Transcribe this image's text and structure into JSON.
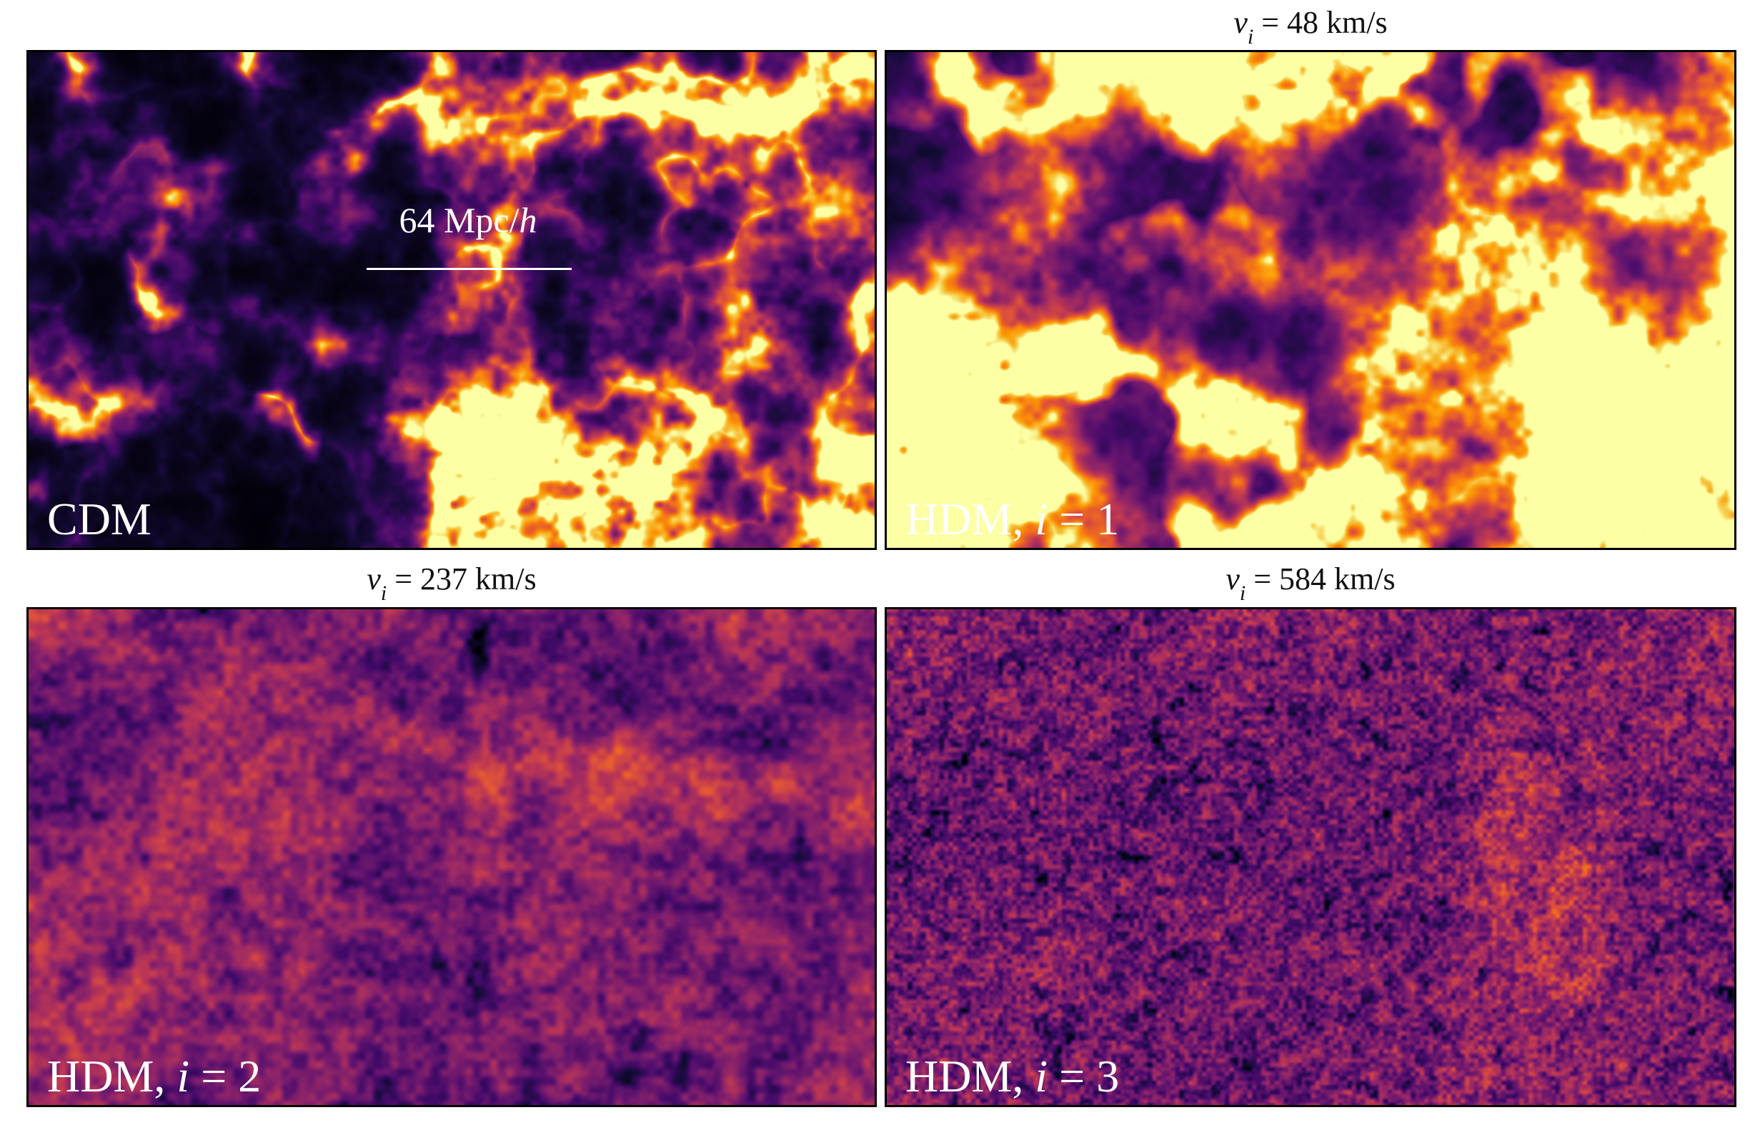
{
  "figure": {
    "background": "#ffffff",
    "frame_color": "#000000",
    "label_color": "#ffffff",
    "title_color": "#111111",
    "colormap_name": "inferno",
    "panels": [
      {
        "key": "cdm",
        "label_pre": "CDM",
        "label_var": "",
        "label_post": "",
        "scalebar_pre": "64 Mpc/",
        "scalebar_var": "h"
      },
      {
        "key": "hdm1",
        "title_var": "v",
        "title_sub": "i",
        "title_post": " = 48 km/s",
        "label_pre": "HDM, ",
        "label_var": "i",
        "label_post": " = 1"
      },
      {
        "key": "hdm2",
        "title_var": "v",
        "title_sub": "i",
        "title_post": " = 237 km/s",
        "label_pre": "HDM, ",
        "label_var": "i",
        "label_post": " = 2"
      },
      {
        "key": "hdm3",
        "title_var": "v",
        "title_sub": "i",
        "title_post": " = 584 km/s",
        "label_pre": "HDM, ",
        "label_var": "i",
        "label_post": " = 3"
      }
    ],
    "render": {
      "inferno_stops": [
        [
          0,
          0,
          4
        ],
        [
          22,
          11,
          57
        ],
        [
          66,
          10,
          104
        ],
        [
          106,
          23,
          110
        ],
        [
          147,
          38,
          103
        ],
        [
          188,
          55,
          84
        ],
        [
          221,
          81,
          58
        ],
        [
          243,
          114,
          25
        ],
        [
          252,
          155,
          6
        ],
        [
          246,
          200,
          70
        ],
        [
          252,
          255,
          164
        ]
      ],
      "panels": {
        "cdm": {
          "type": "web",
          "seed": 11,
          "res": [
            780,
            459
          ],
          "ridgeFreq": 3.4,
          "ridge2Freq": 6.6,
          "ridgePow": 5.0,
          "maskFreq": 2.1,
          "gain": 1.15,
          "fill": 0.045,
          "hazeAmp": 0.16,
          "speckFreq": 34,
          "speckAmp": 0.6,
          "knotAmp": 1.5,
          "bright": 1.0
        },
        "hdm1": {
          "type": "web",
          "seed": 77,
          "res": [
            780,
            459
          ],
          "ridgeFreq": 2.6,
          "ridge2Freq": 5.0,
          "ridgePow": 2.7,
          "maskFreq": 1.7,
          "gain": 1.0,
          "fill": 0.12,
          "hazeAmp": 0.3,
          "speckFreq": 30,
          "speckAmp": 0.45,
          "knotAmp": 1.8,
          "bright": 1.1
        },
        "hdm2": {
          "type": "blob",
          "seed": 33,
          "res": [
            780,
            459
          ],
          "base": 0.16,
          "blobFreq": 2.7,
          "blobAmp": 0.36,
          "hotFreq": 3.0,
          "hotThresh": 0.57,
          "hotAmp": 0.55,
          "grainFreq": 22,
          "grainAmp": 0.15,
          "fineFreq": 60,
          "fineAmp": 0.1,
          "darkFreq": 10,
          "darkAmp": 0.22
        },
        "hdm3": {
          "type": "blob",
          "seed": 55,
          "res": [
            920,
            541
          ],
          "base": 0.25,
          "blobFreq": 2.3,
          "blobAmp": 0.17,
          "hotFreq": 2.9,
          "hotThresh": 0.6,
          "hotAmp": 0.34,
          "grainFreq": 44,
          "grainAmp": 0.17,
          "fineFreq": 110,
          "fineAmp": 0.15,
          "darkFreq": 26,
          "darkAmp": 0.25
        }
      }
    }
  }
}
